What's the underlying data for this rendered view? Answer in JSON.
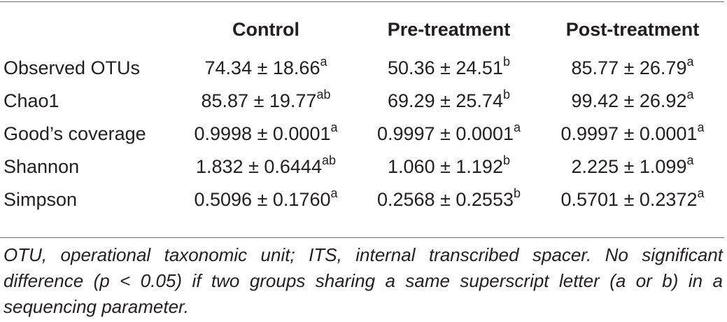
{
  "table": {
    "columns": [
      "",
      "Control",
      "Pre-treatment",
      "Post-treatment"
    ],
    "rows": [
      {
        "label": "Observed OTUs",
        "cells": [
          {
            "value": "74.34 ± 18.66",
            "sup": "a"
          },
          {
            "value": "50.36 ± 24.51",
            "sup": "b"
          },
          {
            "value": "85.77 ± 26.79",
            "sup": "a"
          }
        ]
      },
      {
        "label": "Chao1",
        "cells": [
          {
            "value": "85.87 ± 19.77",
            "sup": "ab"
          },
          {
            "value": "69.29 ± 25.74",
            "sup": "b"
          },
          {
            "value": "99.42 ± 26.92",
            "sup": "a"
          }
        ]
      },
      {
        "label": "Good’s coverage",
        "cells": [
          {
            "value": "0.9998 ± 0.0001",
            "sup": "a"
          },
          {
            "value": "0.9997 ± 0.0001",
            "sup": "a"
          },
          {
            "value": "0.9997 ± 0.0001",
            "sup": "a"
          }
        ]
      },
      {
        "label": "Shannon",
        "cells": [
          {
            "value": "1.832 ± 0.6444",
            "sup": "ab"
          },
          {
            "value": "1.060 ± 1.192",
            "sup": "b"
          },
          {
            "value": "2.225 ± 1.099",
            "sup": "a"
          }
        ]
      },
      {
        "label": "Simpson",
        "cells": [
          {
            "value": "0.5096 ± 0.1760",
            "sup": "a"
          },
          {
            "value": "0.2568 ± 0.2553",
            "sup": "b"
          },
          {
            "value": "0.5701 ± 0.2372",
            "sup": "a"
          }
        ]
      }
    ]
  },
  "footnote": "OTU, operational taxonomic unit; ITS, internal transcribed spacer. No significant difference (p < 0.05) if two groups sharing a same superscript letter (a or b) in a sequencing parameter."
}
